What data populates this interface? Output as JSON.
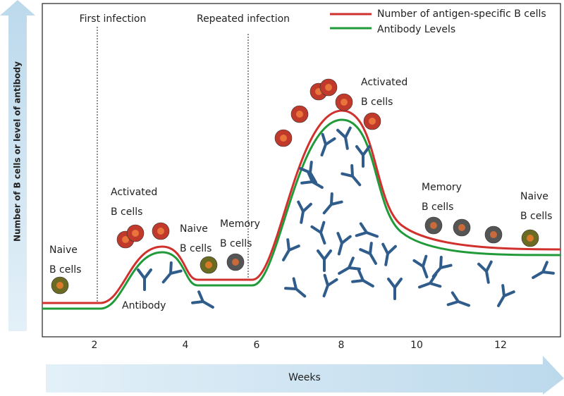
{
  "phases": {
    "first": "First infection",
    "repeated": "Repeated infection"
  },
  "legend": [
    "Number of antigen-specific B cells",
    "Antibody Levels"
  ],
  "y_axis": {
    "title": "Number of B cells or level of antibody"
  },
  "x_axis": {
    "title": "Weeks",
    "ticks": [
      "2",
      "4",
      "6",
      "8",
      "10",
      "12"
    ]
  },
  "cell_labels": [
    [
      "Naive",
      "B cells"
    ],
    [
      "Activated",
      "B cells"
    ],
    [
      "Naive",
      "B cells"
    ],
    [
      "Memory",
      "B cells"
    ],
    [
      "Activated",
      "B cells"
    ],
    [
      "Memory",
      "B cells"
    ],
    [
      "Naive",
      "B cells"
    ]
  ],
  "antibody_label": "Antibody"
}
